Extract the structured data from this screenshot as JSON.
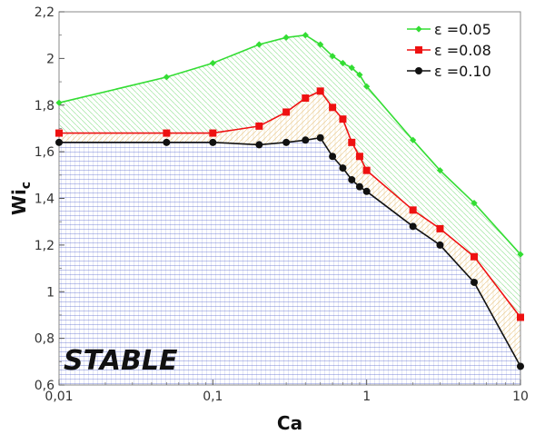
{
  "chart_data": {
    "type": "line",
    "xscale": "log",
    "xlim": [
      0.01,
      10
    ],
    "ylim": [
      0.6,
      2.2
    ],
    "xlabel": "Ca",
    "ylabel": "Wi",
    "ylabel_sub": "c",
    "xticks": [
      {
        "value": 0.01,
        "label": "0,01"
      },
      {
        "value": 0.1,
        "label": "0,1"
      },
      {
        "value": 1,
        "label": "1"
      },
      {
        "value": 10,
        "label": "10"
      }
    ],
    "yticks": [
      {
        "value": 0.6,
        "label": "0,6"
      },
      {
        "value": 0.8,
        "label": "0,8"
      },
      {
        "value": 1.0,
        "label": "1"
      },
      {
        "value": 1.2,
        "label": "1,2"
      },
      {
        "value": 1.4,
        "label": "1,4"
      },
      {
        "value": 1.6,
        "label": "1,6"
      },
      {
        "value": 1.8,
        "label": "1,8"
      },
      {
        "value": 2.0,
        "label": "2"
      },
      {
        "value": 2.2,
        "label": "2,2"
      }
    ],
    "legend_position": "top-right",
    "annotation": "STABLE",
    "series": [
      {
        "name": "ε =0.05",
        "color": "#33dd33",
        "marker": "diamond",
        "x": [
          0.01,
          0.05,
          0.1,
          0.2,
          0.3,
          0.4,
          0.5,
          0.6,
          0.7,
          0.8,
          0.9,
          1,
          2,
          3,
          5,
          10
        ],
        "y": [
          1.81,
          1.92,
          1.98,
          2.06,
          2.09,
          2.1,
          2.06,
          2.01,
          1.98,
          1.96,
          1.93,
          1.88,
          1.65,
          1.52,
          1.38,
          1.16
        ]
      },
      {
        "name": "ε =0.08",
        "color": "#ee1111",
        "marker": "square",
        "x": [
          0.01,
          0.05,
          0.1,
          0.2,
          0.3,
          0.4,
          0.5,
          0.6,
          0.7,
          0.8,
          0.9,
          1,
          2,
          3,
          5,
          10
        ],
        "y": [
          1.68,
          1.68,
          1.68,
          1.71,
          1.77,
          1.83,
          1.86,
          1.79,
          1.74,
          1.64,
          1.58,
          1.52,
          1.35,
          1.27,
          1.15,
          0.89
        ]
      },
      {
        "name": "ε =0.10",
        "color": "#111111",
        "marker": "circle",
        "x": [
          0.01,
          0.05,
          0.1,
          0.2,
          0.3,
          0.4,
          0.5,
          0.6,
          0.7,
          0.8,
          0.9,
          1,
          2,
          3,
          5,
          10
        ],
        "y": [
          1.64,
          1.64,
          1.64,
          1.63,
          1.64,
          1.65,
          1.66,
          1.58,
          1.53,
          1.48,
          1.45,
          1.43,
          1.28,
          1.2,
          1.04,
          0.68
        ]
      }
    ],
    "fills": {
      "stable_hatch_color": "#5566cc",
      "region2_hatch_color": "#e6c07a",
      "region1_hatch_color": "#88dd88"
    }
  }
}
